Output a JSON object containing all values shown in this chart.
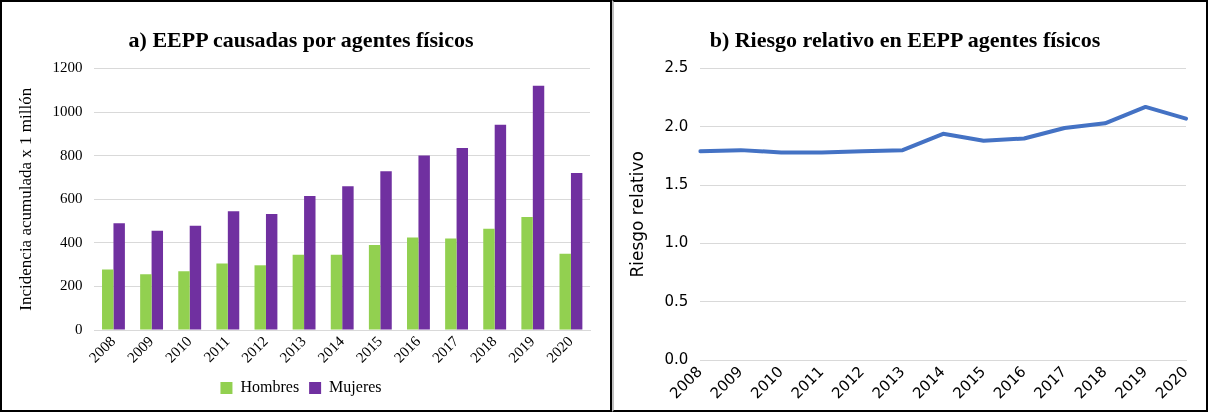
{
  "chart_data": [
    {
      "type": "bar",
      "title": "a) EEPP causadas por agentes físicos",
      "ylabel": "Incidencia acumulada x 1 millón",
      "categories": [
        "2008",
        "2009",
        "2010",
        "2011",
        "2012",
        "2013",
        "2014",
        "2015",
        "2016",
        "2017",
        "2018",
        "2019",
        "2020"
      ],
      "series": [
        {
          "name": "Hombres",
          "color": "#92d050",
          "values": [
            278,
            256,
            270,
            305,
            297,
            345,
            345,
            390,
            425,
            420,
            465,
            518,
            350
          ]
        },
        {
          "name": "Mujeres",
          "color": "#7030a0",
          "values": [
            490,
            456,
            478,
            545,
            532,
            615,
            660,
            728,
            800,
            835,
            942,
            1120,
            720
          ]
        }
      ],
      "ylim": [
        0,
        1200
      ],
      "yticks": [
        0,
        200,
        400,
        600,
        800,
        1000,
        1200
      ],
      "grid": "y",
      "legend": "bottom"
    },
    {
      "type": "line",
      "title": "b) Riesgo relativo en EEPP agentes físicos",
      "ylabel": "Riesgo relativo",
      "categories": [
        "2008",
        "2009",
        "2010",
        "2011",
        "2012",
        "2013",
        "2014",
        "2015",
        "2016",
        "2017",
        "2018",
        "2019",
        "2020"
      ],
      "series": [
        {
          "color": "#4472c4",
          "values": [
            1.79,
            1.8,
            1.78,
            1.78,
            1.79,
            1.8,
            1.94,
            1.88,
            1.9,
            1.99,
            2.03,
            2.17,
            2.07
          ]
        }
      ],
      "ylim": [
        0,
        2.5
      ],
      "yticks": [
        {
          "value": 0,
          "label": "0.0"
        },
        {
          "value": 0.5,
          "label": "0.5"
        },
        {
          "value": 1,
          "label": "1.0"
        },
        {
          "value": 1.5,
          "label": "1.5"
        },
        {
          "value": 2,
          "label": "2.0"
        },
        {
          "value": 2.5,
          "label": "2.5"
        }
      ],
      "grid": "y",
      "marker": "none",
      "line_style": "solid"
    }
  ]
}
